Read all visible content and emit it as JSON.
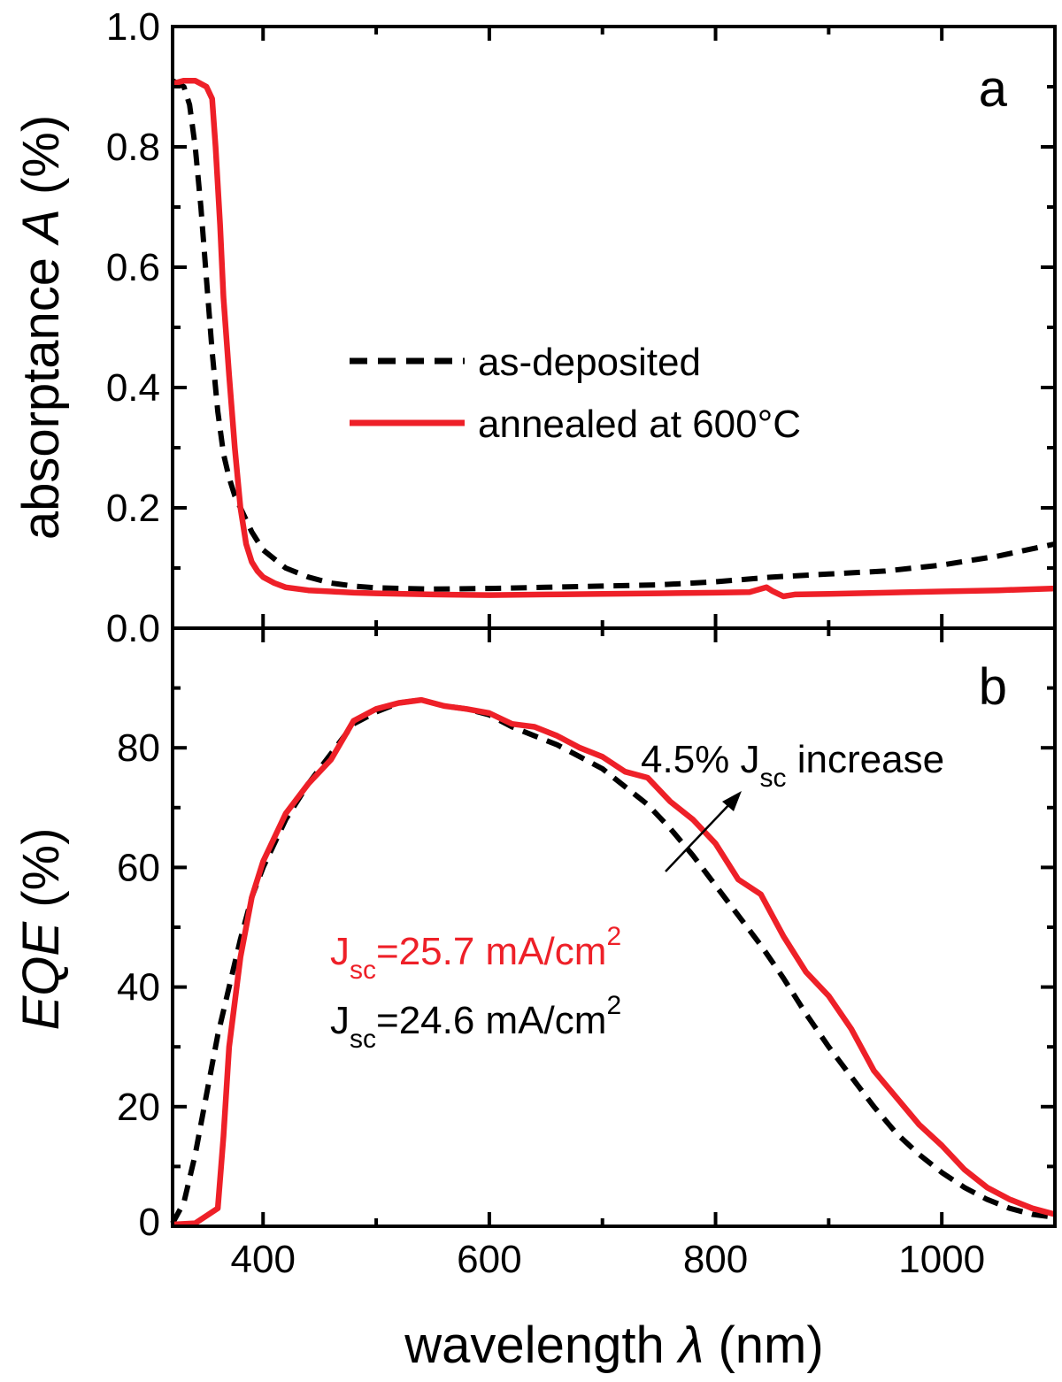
{
  "chart_data": [
    {
      "type": "line",
      "panel_label": "a",
      "ylabel_prefix": "absorptance ",
      "ylabel_var": "A",
      "ylabel_suffix": " (%)",
      "xlim": [
        320,
        1100
      ],
      "ylim": [
        0,
        1.0
      ],
      "yticks": [
        "0.0",
        "0.2",
        "0.4",
        "0.6",
        "0.8",
        "1.0"
      ],
      "ytick_values": [
        0,
        0.2,
        0.4,
        0.6,
        0.8,
        1.0
      ],
      "legend_placement": "center",
      "series": [
        {
          "name": "as-deposited",
          "color": "#000000",
          "dash": true,
          "x": [
            320,
            330,
            335,
            340,
            345,
            350,
            355,
            360,
            365,
            370,
            375,
            380,
            390,
            400,
            420,
            440,
            460,
            480,
            500,
            550,
            600,
            650,
            700,
            750,
            800,
            850,
            900,
            950,
            1000,
            1050,
            1100
          ],
          "y": [
            0.91,
            0.9,
            0.87,
            0.8,
            0.7,
            0.58,
            0.46,
            0.36,
            0.29,
            0.25,
            0.22,
            0.2,
            0.16,
            0.13,
            0.1,
            0.085,
            0.075,
            0.07,
            0.067,
            0.065,
            0.066,
            0.068,
            0.07,
            0.072,
            0.077,
            0.085,
            0.09,
            0.095,
            0.105,
            0.12,
            0.14
          ]
        },
        {
          "name": "annealed at 600°C",
          "color": "#ee2028",
          "dash": false,
          "x": [
            320,
            330,
            340,
            350,
            355,
            358,
            362,
            365,
            370,
            375,
            380,
            385,
            390,
            395,
            400,
            410,
            420,
            440,
            460,
            480,
            500,
            550,
            600,
            650,
            700,
            750,
            800,
            830,
            845,
            850,
            860,
            870,
            900,
            950,
            1000,
            1050,
            1100
          ],
          "y": [
            0.905,
            0.91,
            0.91,
            0.9,
            0.88,
            0.8,
            0.67,
            0.55,
            0.42,
            0.3,
            0.2,
            0.14,
            0.11,
            0.095,
            0.085,
            0.075,
            0.068,
            0.063,
            0.061,
            0.059,
            0.058,
            0.056,
            0.055,
            0.056,
            0.057,
            0.058,
            0.059,
            0.06,
            0.068,
            0.062,
            0.053,
            0.056,
            0.057,
            0.059,
            0.061,
            0.063,
            0.066
          ]
        }
      ]
    },
    {
      "type": "line",
      "panel_label": "b",
      "ylabel_var": "EQE",
      "ylabel_suffix": " (%)",
      "xlabel_prefix": "wavelength ",
      "xlabel_var": "λ",
      "xlabel_suffix": " (nm)",
      "xlim": [
        320,
        1100
      ],
      "ylim": [
        0,
        100
      ],
      "xticks": [
        "400",
        "600",
        "800",
        "1000"
      ],
      "xtick_values": [
        400,
        600,
        800,
        1000
      ],
      "yticks": [
        "0",
        "20",
        "40",
        "60",
        "80"
      ],
      "ytick_values": [
        0,
        20,
        40,
        60,
        80
      ],
      "series": [
        {
          "color": "#000000",
          "dash": true,
          "x": [
            320,
            330,
            340,
            350,
            360,
            370,
            380,
            390,
            400,
            420,
            440,
            460,
            480,
            500,
            520,
            540,
            560,
            580,
            600,
            620,
            640,
            660,
            680,
            700,
            720,
            740,
            760,
            780,
            800,
            820,
            840,
            860,
            880,
            900,
            920,
            940,
            960,
            980,
            1000,
            1020,
            1040,
            1060,
            1080,
            1100
          ],
          "y": [
            0.5,
            4,
            12,
            22,
            32,
            40,
            48,
            55,
            60,
            68,
            74,
            79,
            84,
            86,
            87.5,
            88,
            87,
            86.5,
            85.5,
            83.5,
            82,
            80.5,
            78.5,
            76.5,
            73.5,
            70.5,
            66.5,
            62,
            57,
            52,
            47,
            41.5,
            35.5,
            30,
            25,
            20,
            15.5,
            12,
            9,
            6.5,
            4.5,
            3,
            2,
            1.5
          ]
        },
        {
          "color": "#ee2028",
          "dash": false,
          "x": [
            320,
            340,
            360,
            365,
            370,
            380,
            390,
            400,
            420,
            440,
            460,
            480,
            500,
            520,
            540,
            560,
            580,
            600,
            620,
            640,
            660,
            680,
            700,
            720,
            740,
            760,
            780,
            800,
            820,
            840,
            860,
            880,
            900,
            920,
            940,
            960,
            980,
            1000,
            1020,
            1040,
            1060,
            1080,
            1100
          ],
          "y": [
            0.3,
            0.5,
            3,
            15,
            30,
            45,
            55,
            61,
            69,
            74,
            78,
            84.5,
            86.5,
            87.5,
            88,
            87,
            86.5,
            85.8,
            84,
            83.5,
            82,
            80,
            78.5,
            76,
            75,
            71,
            68,
            64,
            58,
            55.5,
            48.5,
            42.5,
            38.5,
            33,
            26,
            21.5,
            17,
            13.5,
            9.5,
            6.5,
            4.5,
            3,
            2
          ]
        }
      ],
      "annotations": {
        "increase_pre": "4.5% J",
        "increase_sub": "sc",
        "increase_post": " increase",
        "jsc_red_pre": "J",
        "jsc_red_sub": "sc",
        "jsc_red_post": "=25.7 mA/cm",
        "jsc_red_sup": "2",
        "jsc_red_color": "#ee2028",
        "jsc_black_pre": "J",
        "jsc_black_sub": "sc",
        "jsc_black_post": "=24.6 mA/cm",
        "jsc_black_sup": "2"
      }
    }
  ]
}
